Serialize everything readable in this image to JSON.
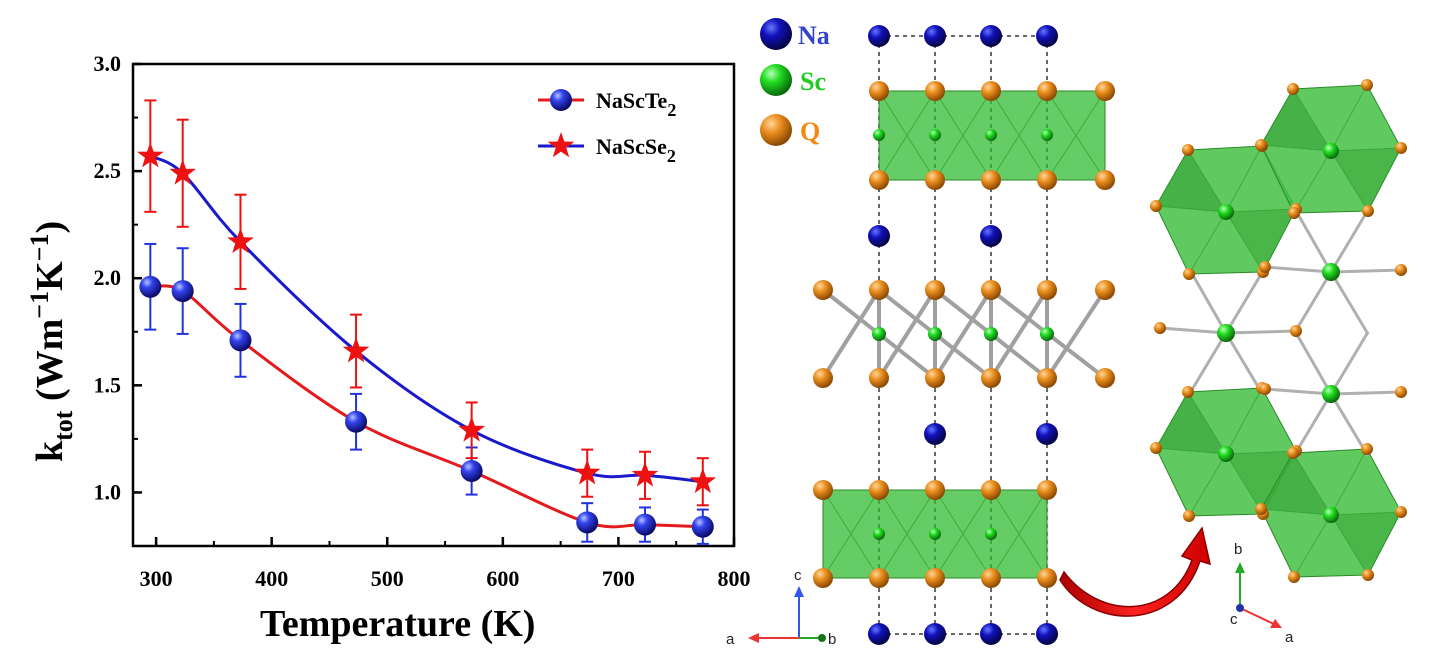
{
  "chart_data": {
    "type": "line",
    "xlabel": "Temperature (K)",
    "ylabel": {
      "base": "k",
      "sub": "tot",
      "rest": " (Wm",
      "exp1": "−1",
      "mid": "K",
      "exp2": "−1",
      "close": ")"
    },
    "xlim": [
      280,
      800
    ],
    "ylim": [
      0.75,
      3.0
    ],
    "x_ticks": [
      "300",
      "400",
      "500",
      "600",
      "700",
      "800"
    ],
    "y_ticks": [
      "1.0",
      "1.5",
      "2.0",
      "2.5",
      "3.0"
    ],
    "legend_position": "top-right",
    "series": [
      {
        "name": "NaScTe",
        "name_sub": "2",
        "color": "#e41a1c",
        "marker": "sphere",
        "marker_color": "#2233dd",
        "errorbar_color": "#2233dd",
        "x": [
          295,
          323,
          373,
          473,
          573,
          673,
          723,
          773
        ],
        "y": [
          1.96,
          1.94,
          1.71,
          1.33,
          1.1,
          0.86,
          0.85,
          0.84
        ],
        "err": [
          0.2,
          0.2,
          0.17,
          0.13,
          0.11,
          0.09,
          0.08,
          0.08
        ]
      },
      {
        "name": "NaScSe",
        "name_sub": "2",
        "color": "#1a1acc",
        "marker": "star",
        "marker_color": "#ee1111",
        "errorbar_color": "#ee1111",
        "x": [
          295,
          323,
          373,
          473,
          573,
          673,
          723,
          773
        ],
        "y": [
          2.57,
          2.49,
          2.17,
          1.66,
          1.29,
          1.09,
          1.08,
          1.05
        ],
        "err": [
          0.26,
          0.25,
          0.22,
          0.17,
          0.13,
          0.11,
          0.11,
          0.11
        ]
      }
    ]
  },
  "structure_legend": [
    {
      "label": "Na",
      "color": "#1a1aaa",
      "text_color": "#3344cc"
    },
    {
      "label": "Sc",
      "color": "#22cc22",
      "text_color": "#22cc22"
    },
    {
      "label": "Q",
      "color": "#e08a1e",
      "text_color": "#f08a10"
    }
  ],
  "axes_left": {
    "c": "c",
    "a": "a",
    "b": "b"
  },
  "axes_right": {
    "b": "b",
    "c": "c",
    "a": "a"
  }
}
